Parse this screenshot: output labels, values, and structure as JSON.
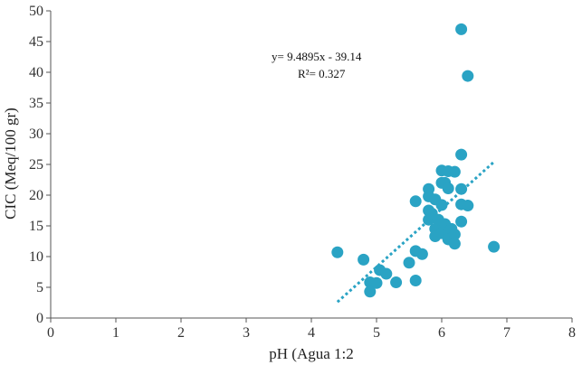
{
  "chart_data": {
    "type": "scatter",
    "xlabel": "pH (Agua 1:2",
    "ylabel": "CIC (Meq/100 gr)",
    "xlim": [
      0,
      8
    ],
    "ylim": [
      0,
      50
    ],
    "xticks": [
      "0",
      "1",
      "2",
      "3",
      "4",
      "5",
      "6",
      "7",
      "8"
    ],
    "yticks": [
      "0",
      "5",
      "10",
      "15",
      "20",
      "25",
      "30",
      "35",
      "40",
      "45",
      "50"
    ],
    "grid": false,
    "legend": "none",
    "point_color": "#2aa3c4",
    "trendline_color": "#2aa3c4",
    "annotations": [
      "y= 9.4895x - 39.14",
      "R²= 0.327"
    ],
    "trendline": {
      "slope": 9.4895,
      "intercept": -39.14,
      "x_range": [
        4.4,
        6.8
      ]
    },
    "series": [
      {
        "points": [
          [
            4.4,
            10.7
          ],
          [
            4.8,
            9.5
          ],
          [
            4.9,
            5.8
          ],
          [
            4.9,
            4.3
          ],
          [
            5.0,
            5.7
          ],
          [
            5.05,
            7.8
          ],
          [
            5.15,
            7.2
          ],
          [
            5.3,
            5.8
          ],
          [
            5.5,
            9.0
          ],
          [
            5.6,
            6.1
          ],
          [
            5.6,
            10.9
          ],
          [
            5.6,
            19.0
          ],
          [
            5.7,
            10.4
          ],
          [
            5.8,
            21.0
          ],
          [
            5.8,
            19.8
          ],
          [
            5.8,
            17.5
          ],
          [
            5.8,
            16.0
          ],
          [
            5.85,
            17.0
          ],
          [
            5.9,
            19.3
          ],
          [
            5.9,
            14.5
          ],
          [
            5.9,
            13.3
          ],
          [
            5.95,
            16.0
          ],
          [
            6.0,
            24.0
          ],
          [
            6.0,
            22.0
          ],
          [
            6.0,
            18.4
          ],
          [
            6.0,
            13.8
          ],
          [
            6.05,
            22.0
          ],
          [
            6.05,
            15.3
          ],
          [
            6.1,
            23.9
          ],
          [
            6.1,
            21.1
          ],
          [
            6.1,
            14.0
          ],
          [
            6.1,
            12.8
          ],
          [
            6.15,
            14.5
          ],
          [
            6.2,
            23.8
          ],
          [
            6.2,
            13.6
          ],
          [
            6.2,
            12.1
          ],
          [
            6.3,
            47.0
          ],
          [
            6.3,
            26.6
          ],
          [
            6.3,
            21.0
          ],
          [
            6.3,
            18.5
          ],
          [
            6.3,
            15.7
          ],
          [
            6.4,
            39.4
          ],
          [
            6.4,
            18.3
          ],
          [
            6.8,
            11.6
          ]
        ]
      }
    ]
  }
}
